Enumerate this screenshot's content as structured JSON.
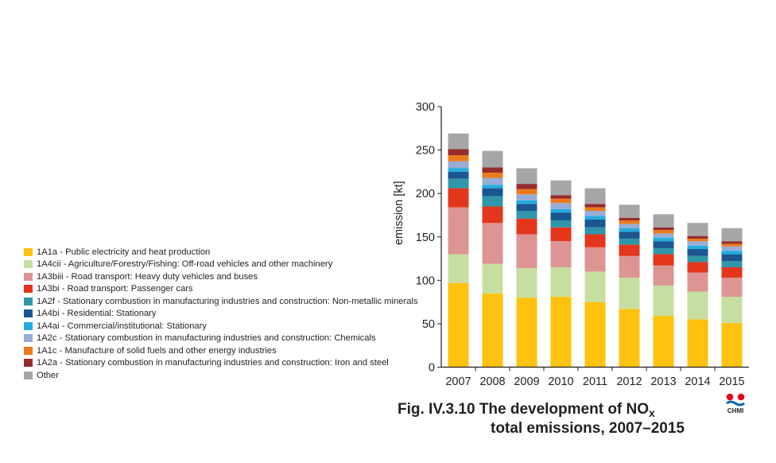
{
  "chart_data": {
    "type": "bar",
    "stacked": true,
    "ylabel": "emission [kt]",
    "ylim": [
      0,
      300
    ],
    "yticks": [
      0,
      50,
      100,
      150,
      200,
      250,
      300
    ],
    "grid": false,
    "legend_position": "left",
    "categories": [
      "2007",
      "2008",
      "2009",
      "2010",
      "2011",
      "2012",
      "2013",
      "2014",
      "2015"
    ],
    "series": [
      {
        "code": "1A1a",
        "name": "Public electricity and heat production",
        "color": "#ffc20e",
        "values": [
          97,
          85,
          80,
          81,
          75,
          67,
          59,
          55,
          51
        ]
      },
      {
        "code": "1A4cii",
        "name": "Agriculture/Forestry/Fishing: Off-road vehicles and other machinery",
        "color": "#c6dfa1",
        "values": [
          33,
          34,
          34,
          34,
          35,
          36,
          35,
          32,
          30
        ]
      },
      {
        "code": "1A3biii",
        "name": "Road transport: Heavy duty vehicles and buses",
        "color": "#dc9593",
        "values": [
          54,
          47,
          39,
          30,
          28,
          25,
          23,
          22,
          22
        ]
      },
      {
        "code": "1A3bi",
        "name": "Road transport: Passenger cars",
        "color": "#e3361c",
        "values": [
          22,
          19,
          18,
          16,
          15,
          13,
          13,
          12,
          12
        ]
      },
      {
        "code": "1A2f",
        "name": "Stationary combustion in manufacturing industries and construction: Non-metallic minerals",
        "color": "#2f96a9",
        "values": [
          11,
          12,
          9,
          8,
          8,
          7,
          7,
          7,
          7
        ]
      },
      {
        "code": "1A4bi",
        "name": "Residential: Stationary",
        "color": "#1b5690",
        "values": [
          8,
          9,
          8,
          9,
          9,
          8,
          8,
          8,
          8
        ]
      },
      {
        "code": "1A4ai",
        "name": "Commercial/institutional: Stationary",
        "color": "#21ace1",
        "values": [
          4,
          4,
          4,
          4,
          4,
          4,
          4,
          4,
          4
        ]
      },
      {
        "code": "1A2c",
        "name": "Stationary combustion in manufacturing industries and construction: Chemicals",
        "color": "#97acd6",
        "values": [
          8,
          8,
          7,
          7,
          6,
          5,
          5,
          5,
          5
        ]
      },
      {
        "code": "1A1c",
        "name": "Manufacture of solid fuels and other energy industries",
        "color": "#ec7a1c",
        "values": [
          7,
          6,
          6,
          5,
          4,
          4,
          4,
          3,
          3
        ]
      },
      {
        "code": "1A2a",
        "name": "Stationary combustion in manufacturing industries and construction: Iron and steel",
        "color": "#962b2d",
        "values": [
          7,
          6,
          6,
          4,
          4,
          3,
          3,
          3,
          3
        ]
      },
      {
        "code": "",
        "name": "Other",
        "color": "#a6a6a6",
        "values": [
          18,
          19,
          18,
          17,
          18,
          15,
          15,
          15,
          15
        ]
      }
    ]
  },
  "caption": {
    "line1_prefix": "Fig. IV.3.10  The development of NO",
    "line1_sub": "x",
    "line2": "total emissions, 2007–2015"
  },
  "logo": {
    "text": "CHMI",
    "colors": [
      "#e2001a",
      "#0069b4"
    ]
  }
}
